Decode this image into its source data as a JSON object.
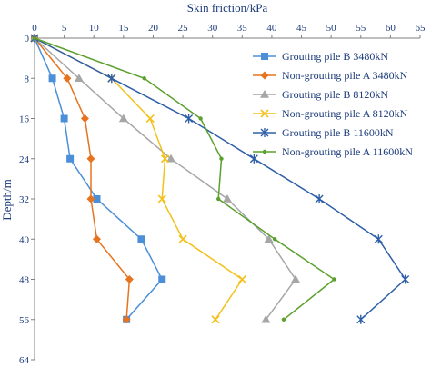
{
  "chart_data": {
    "type": "line",
    "xlabel": "Skin friction/kPa",
    "ylabel": "Depth/m",
    "xlim": [
      0,
      65
    ],
    "ylim": [
      0,
      64
    ],
    "xticks": [
      0,
      5,
      10,
      15,
      20,
      25,
      30,
      35,
      40,
      45,
      50,
      55,
      60,
      65
    ],
    "yticks": [
      0,
      8,
      16,
      24,
      32,
      40,
      48,
      56,
      64
    ],
    "x_axis_position": "top",
    "y_reversed": true,
    "grid": false,
    "legend_position": "right",
    "series": [
      {
        "name": "Grouting pile B 3480kN",
        "color": "#4a8fd8",
        "marker": "square",
        "points": [
          [
            0,
            0
          ],
          [
            3,
            8
          ],
          [
            5,
            16
          ],
          [
            6,
            24
          ],
          [
            10.5,
            32
          ],
          [
            18,
            40
          ],
          [
            21.5,
            48
          ],
          [
            15.5,
            56
          ]
        ]
      },
      {
        "name": "Non-grouting pile A 3480kN",
        "color": "#e8731e",
        "marker": "diamond",
        "points": [
          [
            0,
            0
          ],
          [
            5.5,
            8
          ],
          [
            8.5,
            16
          ],
          [
            9.5,
            24
          ],
          [
            9.5,
            32
          ],
          [
            10.5,
            40
          ],
          [
            16,
            48
          ],
          [
            15.5,
            56
          ]
        ]
      },
      {
        "name": "Grouting pile B 8120kN",
        "color": "#a6a6a6",
        "marker": "triangle",
        "points": [
          [
            0,
            0
          ],
          [
            7.5,
            8
          ],
          [
            15,
            16
          ],
          [
            23,
            24
          ],
          [
            32.5,
            32
          ],
          [
            39.5,
            40
          ],
          [
            44,
            48
          ],
          [
            39,
            56
          ]
        ]
      },
      {
        "name": "Non-grouting pile A 8120kN",
        "color": "#f3c11a",
        "marker": "x",
        "points": [
          [
            0,
            0
          ],
          [
            13,
            8
          ],
          [
            19.5,
            16
          ],
          [
            22,
            24
          ],
          [
            21.5,
            32
          ],
          [
            25,
            40
          ],
          [
            35,
            48
          ],
          [
            30.5,
            56
          ]
        ]
      },
      {
        "name": "Grouting pile B 11600kN",
        "color": "#2e5fa8",
        "marker": "star",
        "points": [
          [
            0,
            0
          ],
          [
            13,
            8
          ],
          [
            26,
            16
          ],
          [
            37,
            24
          ],
          [
            48,
            32
          ],
          [
            58,
            40
          ],
          [
            62.5,
            48
          ],
          [
            55,
            56
          ]
        ]
      },
      {
        "name": "Non-grouting pile A 11600kN",
        "color": "#5aa02c",
        "marker": "dot",
        "points": [
          [
            0,
            0
          ],
          [
            18.5,
            8
          ],
          [
            28,
            16
          ],
          [
            31.5,
            24
          ],
          [
            31,
            32
          ],
          [
            40.5,
            40
          ],
          [
            50.5,
            48
          ],
          [
            42,
            56
          ]
        ]
      }
    ]
  }
}
